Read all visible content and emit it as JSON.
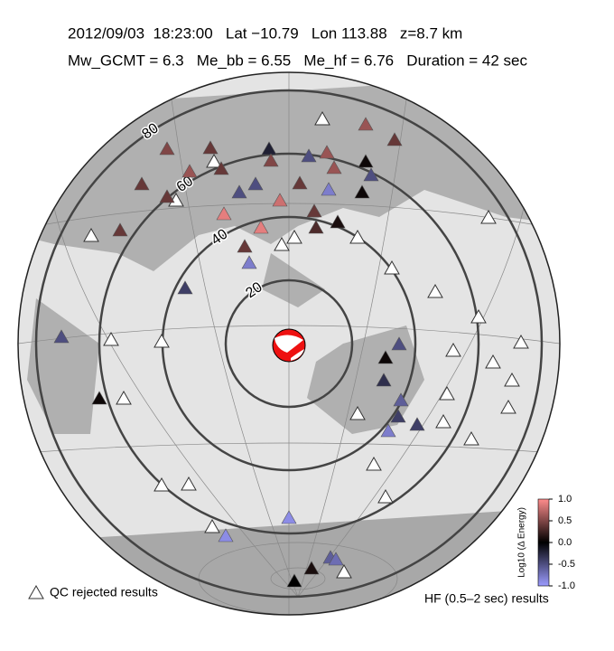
{
  "header": {
    "line1": "2012/09/03  18:23:00   Lat −10.79   Lon 113.88   z=8.7 km",
    "line2": "Mw_GCMT = 6.3   Me_bb = 6.55   Me_hf = 6.76   Duration = 42 sec"
  },
  "rings": [
    20,
    40,
    60,
    80
  ],
  "stations": {
    "values": [
      0.6,
      0.4,
      0.5,
      0.4,
      -0.2,
      -0.5,
      0.6,
      0.05,
      0.5,
      0.4,
      0.6,
      0.6,
      0.4,
      0.4,
      -0.5,
      -0.5,
      0.4,
      -0.8,
      -0.5,
      0.05,
      0.8,
      0.9,
      0.9,
      0.4,
      0.1,
      0.3,
      0.4,
      0.4,
      -0.8,
      -0.4,
      -0.5,
      -0.5,
      0.05,
      -0.3,
      -0.6,
      -0.4,
      -0.4,
      -0.8,
      0.05,
      -0.9,
      -0.9,
      -0.6,
      -0.7,
      0.1,
      0.0
    ]
  },
  "colorbar": {
    "title": "Log10 (Δ Energy)",
    "lim": [
      -1,
      1
    ],
    "ticks": [
      {
        "value": 1,
        "label": "1.0"
      },
      {
        "value": 0.5,
        "label": "0.5"
      },
      {
        "value": 0,
        "label": "0.0"
      },
      {
        "value": -0.5,
        "label": "-0.5"
      },
      {
        "value": -1,
        "label": "-1.0"
      }
    ]
  },
  "legend_qc": "QC rejected results",
  "footer": "HF (0.5–2 sec) results"
}
